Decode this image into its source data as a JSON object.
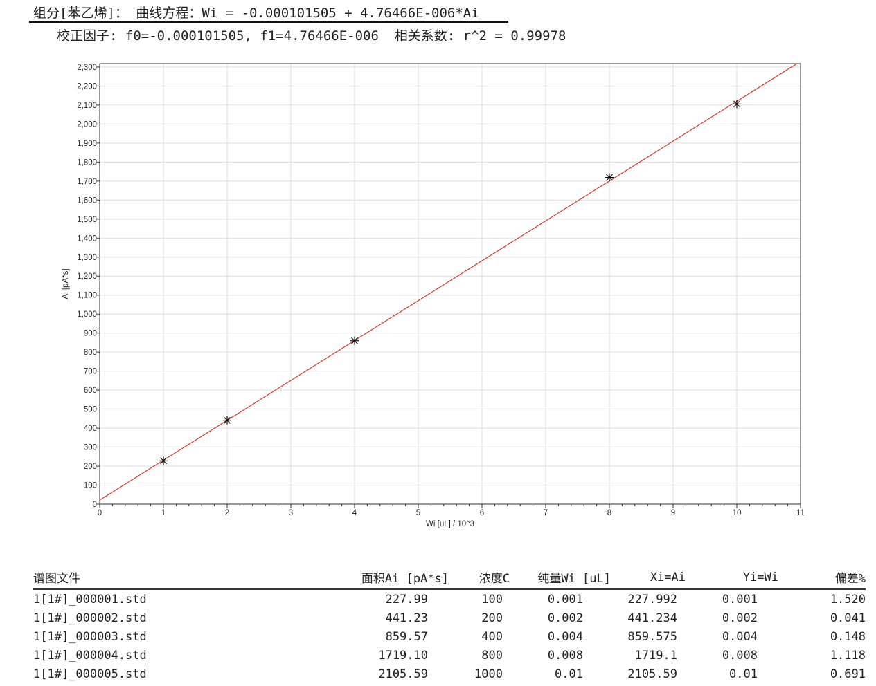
{
  "header": {
    "line1": "组分[苯乙烯]： 曲线方程：Wi = -0.000101505 + 4.76466E-006*Ai",
    "line2": "校正因子: f0=-0.000101505, f1=4.76466E-006  相关系数: r^2 = 0.99978"
  },
  "chart_data": {
    "type": "scatter",
    "xlabel": "Wi [uL] / 10^3",
    "ylabel": "Ai [pA*s]",
    "xlim": [
      0,
      11
    ],
    "ylim": [
      0,
      2318
    ],
    "xticks": [
      0,
      1,
      2,
      3,
      4,
      5,
      6,
      7,
      8,
      9,
      10,
      11
    ],
    "yticks": [
      0,
      100,
      200,
      300,
      400,
      500,
      600,
      700,
      800,
      900,
      1000,
      1100,
      1200,
      1300,
      1400,
      1500,
      1600,
      1700,
      1800,
      1900,
      2000,
      2100,
      2200,
      2300
    ],
    "ytick_labels": [
      "0",
      "100",
      "200",
      "300",
      "400",
      "500",
      "600",
      "700",
      "800",
      "900",
      "1,000",
      "1,100",
      "1,200",
      "1,300",
      "1,400",
      "1,500",
      "1,600",
      "1,700",
      "1,800",
      "1,900",
      "2,000",
      "2,100",
      "2,200",
      "2,300"
    ],
    "grid": true,
    "points": {
      "x": [
        1,
        2,
        4,
        8,
        10
      ],
      "y": [
        227.99,
        441.23,
        859.57,
        1719.1,
        2105.59
      ],
      "marker": "asterisk",
      "color": "#000000"
    },
    "fit_line": {
      "f0": -0.000101505,
      "f1": 4.76466e-06,
      "color": "#d9342b"
    }
  },
  "table": {
    "headers": [
      "谱图文件",
      "面积Ai [pA*s]",
      "浓度C",
      "纯量Wi [uL]",
      "Xi=Ai",
      "Yi=Wi",
      "偏差%"
    ],
    "rows": [
      [
        "1[1#]_000001.std",
        "227.99",
        "100",
        "0.001",
        "227.992",
        "0.001",
        "1.520"
      ],
      [
        "1[1#]_000002.std",
        "441.23",
        "200",
        "0.002",
        "441.234",
        "0.002",
        "0.041"
      ],
      [
        "1[1#]_000003.std",
        "859.57",
        "400",
        "0.004",
        "859.575",
        "0.004",
        "0.148"
      ],
      [
        "1[1#]_000004.std",
        "1719.10",
        "800",
        "0.008",
        "1719.1",
        "0.008",
        "1.118"
      ],
      [
        "1[1#]_000005.std",
        "2105.59",
        "1000",
        "0.01",
        "2105.59",
        "0.01",
        "0.691"
      ]
    ]
  }
}
